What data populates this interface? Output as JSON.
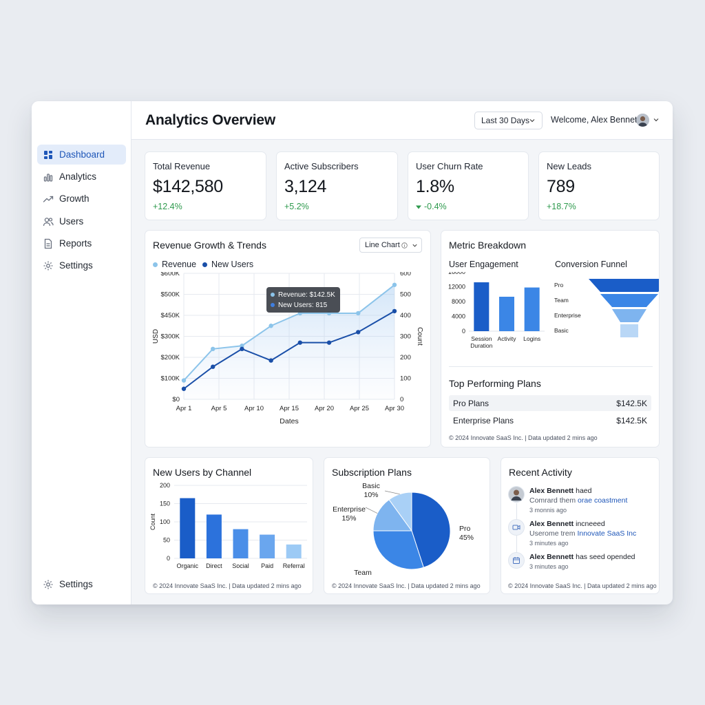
{
  "header": {
    "title": "Analytics Overview",
    "date_range": "Last 30 Days",
    "welcome": "Welcome, Alex Bennett"
  },
  "sidebar": {
    "items": [
      {
        "label": "Dashboard",
        "icon": "dashboard-icon",
        "active": true
      },
      {
        "label": "Analytics",
        "icon": "analytics-icon"
      },
      {
        "label": "Growth",
        "icon": "growth-icon"
      },
      {
        "label": "Users",
        "icon": "users-icon"
      },
      {
        "label": "Reports",
        "icon": "reports-icon"
      },
      {
        "label": "Settings",
        "icon": "gear-icon"
      }
    ],
    "footer_settings": "Settings"
  },
  "kpis": [
    {
      "label": "Total Revenue",
      "value": "$142,580",
      "delta": "+12.4%"
    },
    {
      "label": "Active Subscribers",
      "value": "3,124",
      "delta": "+5.2%"
    },
    {
      "label": "User Churn Rate",
      "value": "1.8%",
      "delta": "-0.4%"
    },
    {
      "label": "New Leads",
      "value": "789",
      "delta": "+18.7%"
    }
  ],
  "revenue_card": {
    "title": "Revenue Growth & Trends",
    "chart_type_label": "Line Chart",
    "tooltip_revenue": "Revenue: $142.5K",
    "tooltip_users": "New Users: 815"
  },
  "metric_breakdown": {
    "title": "Metric Breakdown",
    "engagement_title": "User Engagement",
    "funnel_title": "Conversion Funnel",
    "top_plans_title": "Top Performing Plans",
    "plans": [
      {
        "name": "Pro Plans",
        "value": "$142.5K"
      },
      {
        "name": "Enterprise Plans",
        "value": "$142.5K"
      }
    ],
    "footnote": "© 2024 Innovate SaaS Inc. | Data updated 2 mins ago"
  },
  "channel_card": {
    "title": "New Users by Channel",
    "footnote": "© 2024 Innovate SaaS Inc. | Data updated 2 mins ago"
  },
  "plans_card": {
    "title": "Subscription Plans",
    "footnote": "© 2024 Innovate SaaS Inc. | Data updated 2 mins ago"
  },
  "activity_card": {
    "title": "Recent Activity",
    "items": [
      {
        "name": "Alex Bennett",
        "action": " haed",
        "sub": "Comrard them ",
        "link": "orae coastment",
        "time": "3 monnis ago",
        "icon": "avatar"
      },
      {
        "name": "Alex Bennett",
        "action": " incneeed",
        "sub": "Userome trem ",
        "link": "Innovate SaaS Inc",
        "time": "3 minutes ago",
        "icon": "video-icon"
      },
      {
        "name": "Alex Bennett",
        "action": " has seed opended",
        "sub": "",
        "link": "",
        "time": "3 minutes ago",
        "icon": "calendar-icon"
      }
    ],
    "footnote": "© 2024 Innovate SaaS Inc. | Data updated 2 mins ago"
  },
  "colors": {
    "primary": "#1e5fcf",
    "light": "#8cc4ea",
    "positive": "#2e9a4d"
  },
  "chart_data": [
    {
      "type": "line",
      "title": "Revenue Growth & Trends",
      "xlabel": "Dates",
      "ylabel": "USD",
      "y2label": "Count",
      "x": [
        "Apr 1",
        "Apr 5",
        "Apr 10",
        "Apr 15",
        "Apr 20",
        "Apr 25",
        "Apr 30"
      ],
      "x_points": [
        1,
        5,
        9,
        13,
        17,
        21,
        25,
        29,
        30
      ],
      "series": [
        {
          "name": "Revenue",
          "axis": "left",
          "color": "#8cc4ea",
          "points": [
            [
              1,
              90
            ],
            [
              5,
              240
            ],
            [
              9,
              255
            ],
            [
              13,
              350
            ],
            [
              17,
              410
            ],
            [
              21,
              410
            ],
            [
              25,
              410
            ],
            [
              30,
              545
            ]
          ]
        },
        {
          "name": "New Users",
          "axis": "right",
          "color": "#1a4fa8",
          "points": [
            [
              1,
              50
            ],
            [
              5,
              155
            ],
            [
              9,
              240
            ],
            [
              13,
              185
            ],
            [
              17,
              270
            ],
            [
              21,
              270
            ],
            [
              25,
              320
            ],
            [
              30,
              420
            ]
          ]
        }
      ],
      "y_ticks": [
        "$0",
        "$100K",
        "$200K",
        "$300K",
        "$450K",
        "$500K",
        "$600K"
      ],
      "y2_ticks": [
        "0",
        "100",
        "200",
        "300",
        "400",
        "500",
        "600"
      ],
      "grid": true,
      "legend": "top-left"
    },
    {
      "type": "bar",
      "title": "User Engagement",
      "categories": [
        "Session Duration",
        "Activity",
        "Logins"
      ],
      "values": [
        13200,
        9300,
        11800
      ],
      "y_ticks": [
        "0",
        "4000",
        "8000",
        "12000",
        "16000"
      ],
      "ylim": [
        0,
        16000
      ]
    },
    {
      "type": "bar",
      "title": "Conversion Funnel",
      "categories": [
        "Pro",
        "Team",
        "Enterprise",
        "Basic"
      ],
      "values": [
        4,
        3,
        2,
        1
      ]
    },
    {
      "type": "bar",
      "title": "New Users by Channel",
      "ylabel": "Count",
      "categories": [
        "Organic",
        "Direct",
        "Social",
        "Paid",
        "Referral"
      ],
      "values": [
        165,
        120,
        80,
        65,
        38
      ],
      "y_ticks": [
        "0",
        "50",
        "100",
        "150",
        "200"
      ],
      "ylim": [
        0,
        200
      ],
      "grid": true
    },
    {
      "type": "pie",
      "title": "Subscription Plans",
      "labels": [
        "Pro",
        "Team",
        "Enterprise",
        "Basic"
      ],
      "values": [
        45,
        30,
        15,
        10
      ],
      "display": [
        "45%",
        "30%",
        "15%",
        "10%"
      ]
    }
  ]
}
